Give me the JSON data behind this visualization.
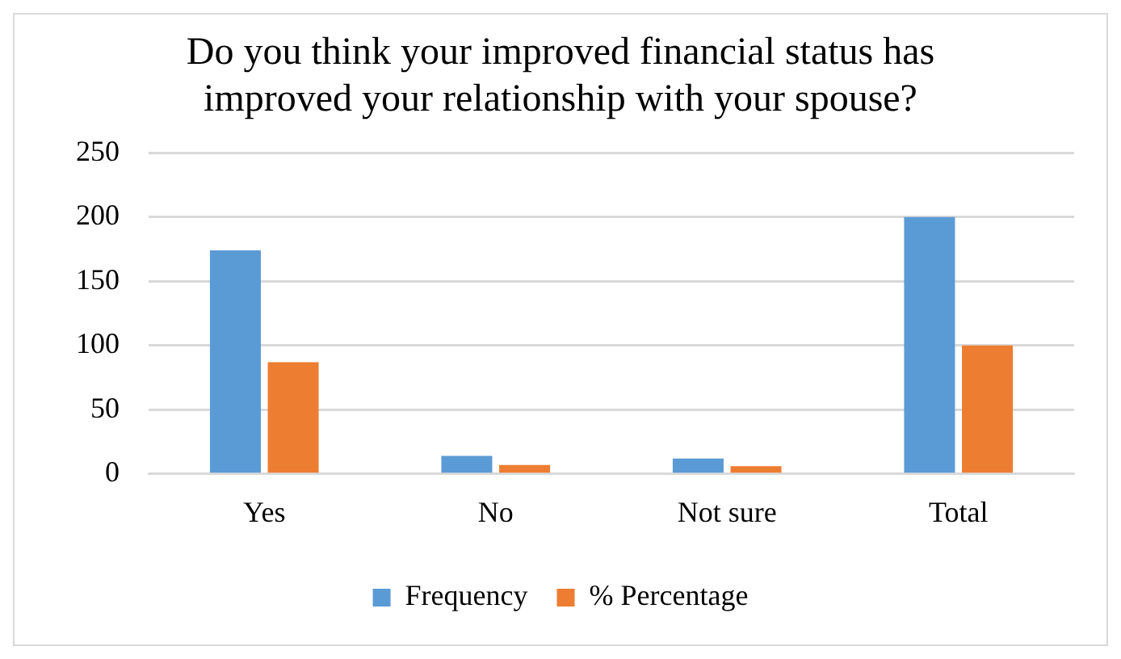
{
  "chart_data": {
    "type": "bar",
    "title": "Do you think your improved financial status has improved your relationship with your spouse?",
    "categories": [
      "Yes",
      "No",
      "Not sure",
      "Total"
    ],
    "series": [
      {
        "name": "Frequency",
        "color": "#5b9bd5",
        "values": [
          174,
          14,
          12,
          200
        ]
      },
      {
        "name": "% Percentage",
        "color": "#ed7d31",
        "values": [
          87,
          7,
          6,
          100
        ]
      }
    ],
    "ylim": [
      0,
      250
    ],
    "yticks": [
      0,
      50,
      100,
      150,
      200,
      250
    ],
    "grid": "y",
    "legend": "bottom"
  }
}
